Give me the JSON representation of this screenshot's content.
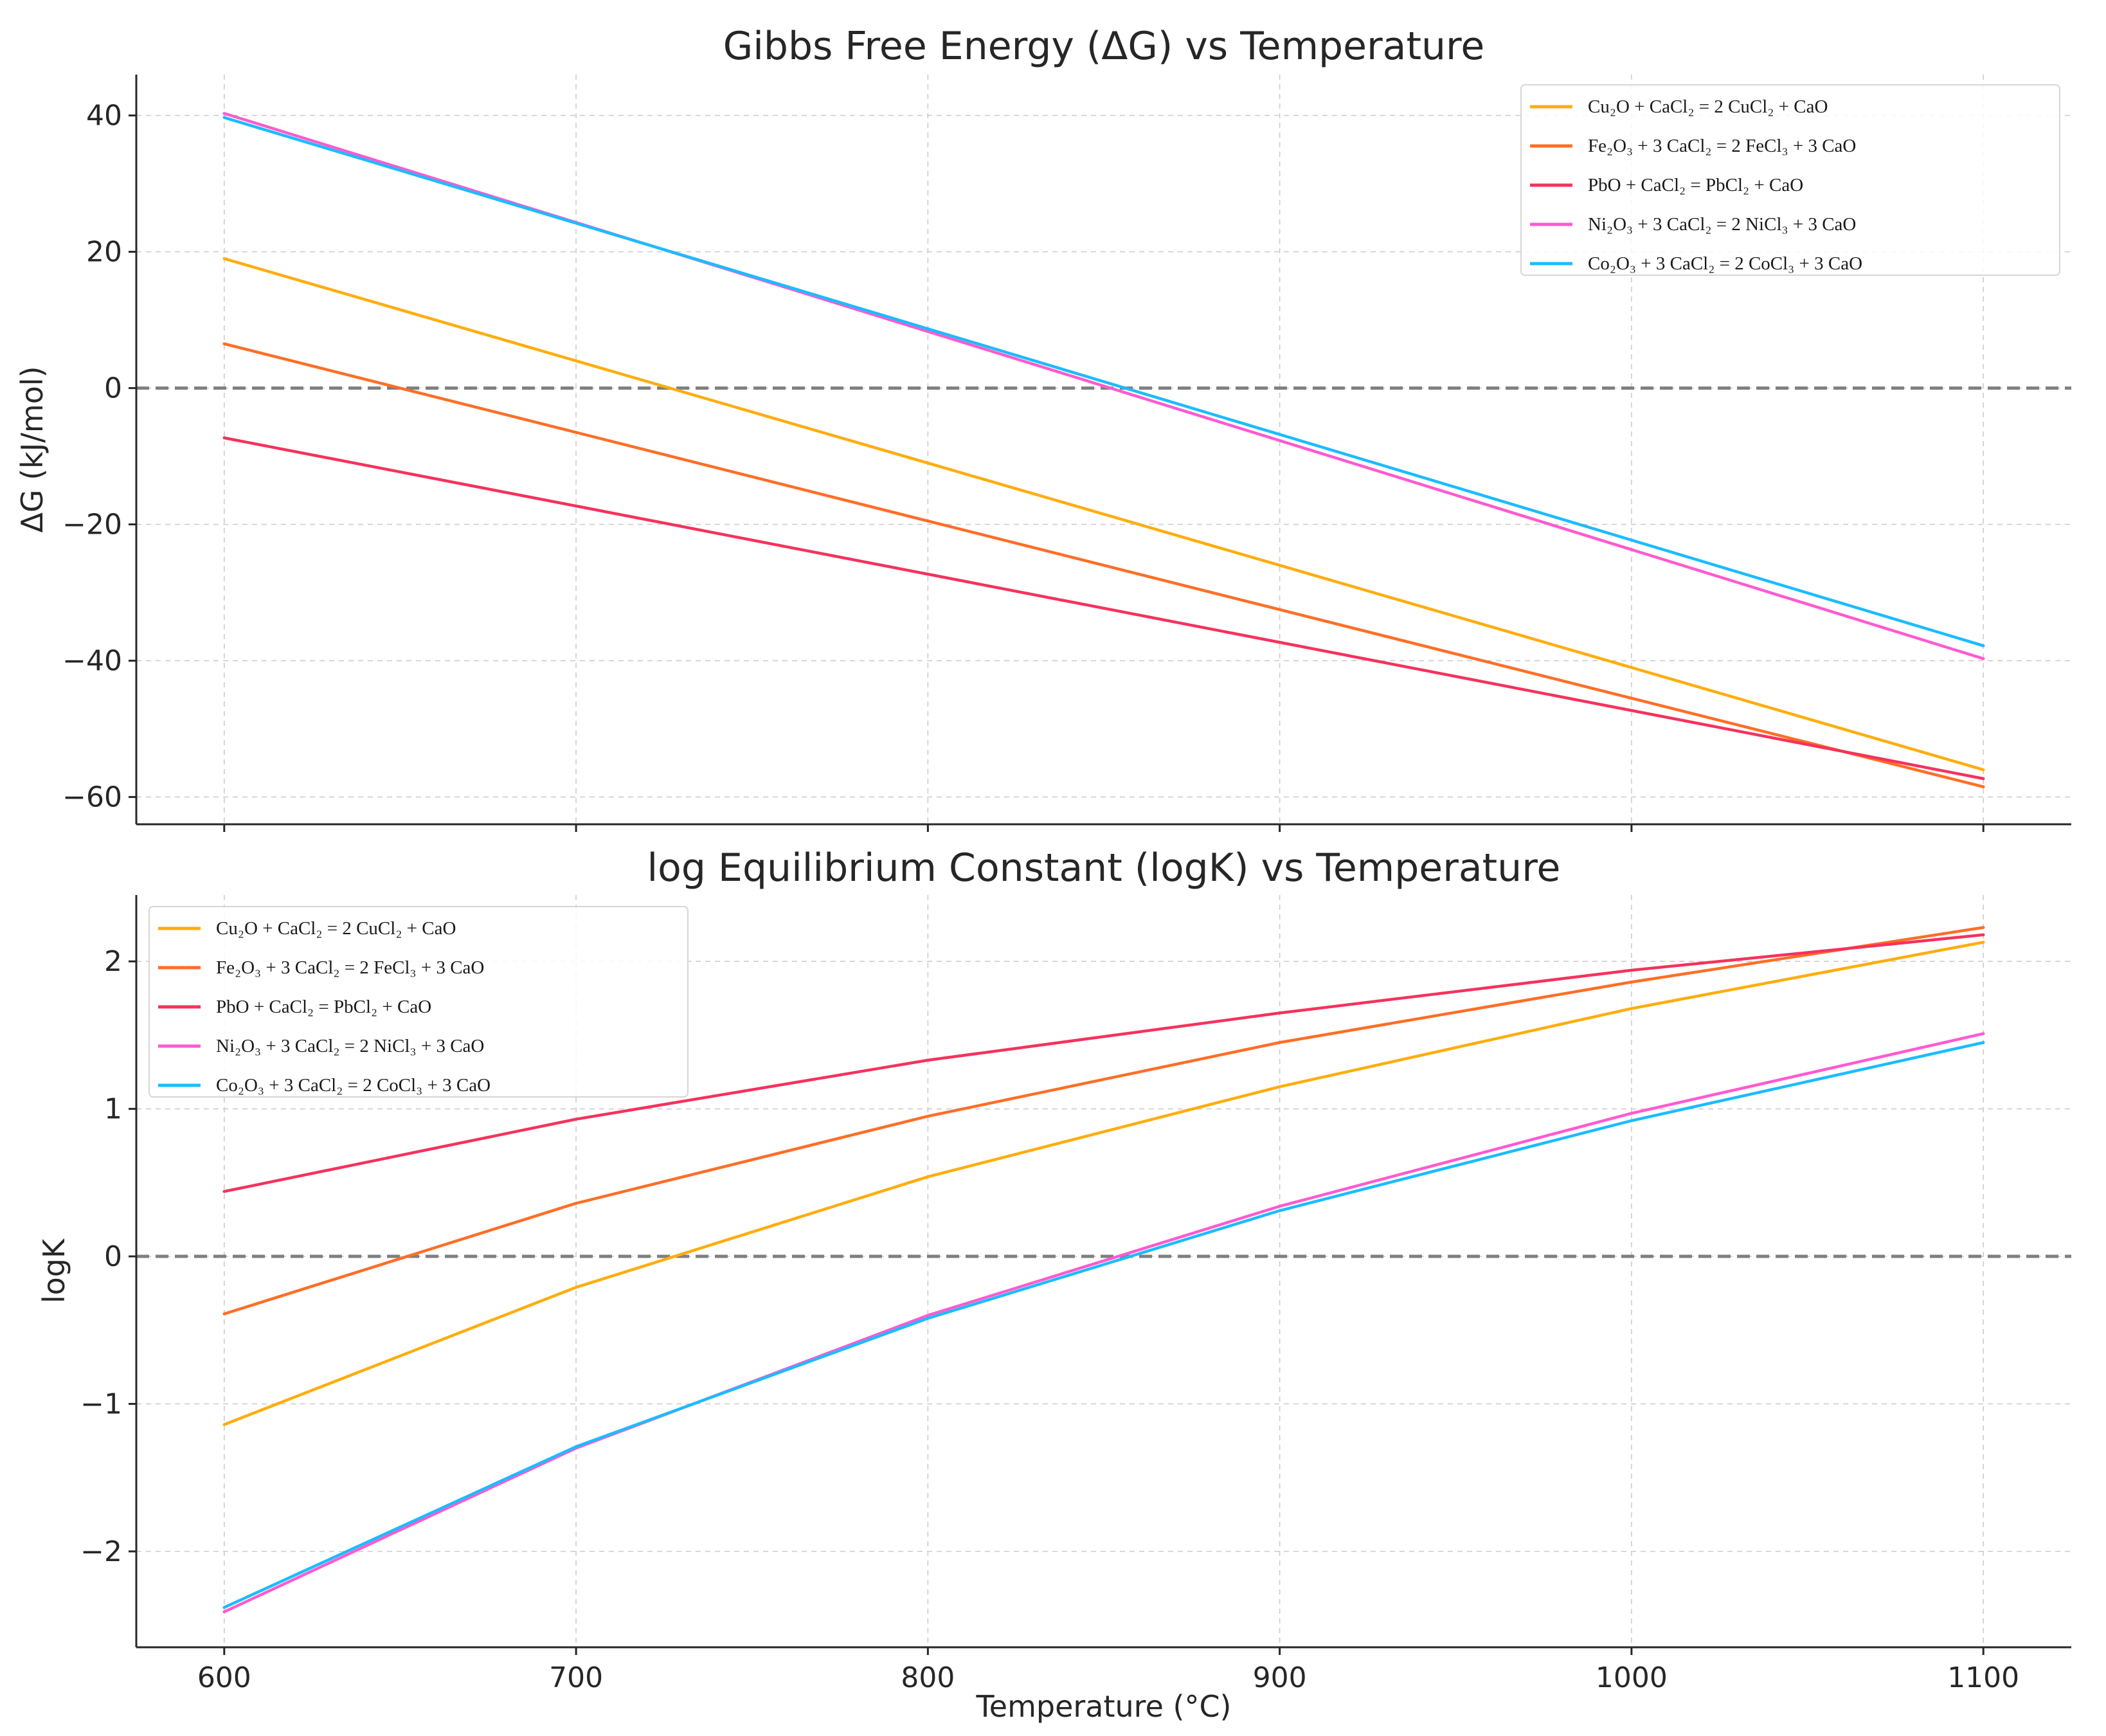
{
  "chart_data": [
    {
      "type": "line",
      "title": "Gibbs Free Energy (ΔG) vs Temperature",
      "xlabel": "",
      "ylabel": "ΔG (kJ/mol)",
      "x": [
        600,
        700,
        800,
        900,
        1000,
        1100
      ],
      "xlim": [
        575,
        1125
      ],
      "ylim": [
        -64,
        46
      ],
      "yticks": [
        40,
        20,
        0,
        -20,
        -40,
        -60
      ],
      "ytick_labels": [
        "40",
        "20",
        "0",
        "−20",
        "−40",
        "−60"
      ],
      "show_xtick_labels": false,
      "grid": true,
      "zero_line": true,
      "legend_position": "upper-right",
      "series": [
        {
          "name": "Cu₂O + CaCl₂ = 2 CuCl₂ + CaO",
          "color": "#ffad0d",
          "values": [
            19,
            4,
            -11,
            -26,
            -41,
            -56
          ]
        },
        {
          "name": "Fe₂O₃ + 3 CaCl₂ = 2 FeCl₃ + 3 CaO",
          "color": "#ff6e26",
          "values": [
            6.5,
            -6.5,
            -19.5,
            -32.5,
            -45.5,
            -58.5
          ]
        },
        {
          "name": "PbO + CaCl₂ = PbCl₂ + CaO",
          "color": "#f5325c",
          "values": [
            -7.3,
            -17.3,
            -27.3,
            -37.3,
            -47.3,
            -57.3
          ]
        },
        {
          "name": "Ni₂O₃ + 3 CaCl₂ = 2 NiCl₃ + 3 CaO",
          "color": "#ff5ad1",
          "values": [
            40.3,
            24.3,
            8.3,
            -7.7,
            -23.7,
            -39.7
          ]
        },
        {
          "name": "Co₂O₃ + 3 CaCl₂ = 2 CoCl₃ + 3 CaO",
          "color": "#1bbcff",
          "values": [
            39.7,
            24.2,
            8.7,
            -6.8,
            -22.3,
            -37.8
          ]
        }
      ]
    },
    {
      "type": "line",
      "title": "log Equilibrium Constant (logK) vs Temperature",
      "xlabel": "Temperature (°C)",
      "ylabel": "logK",
      "x": [
        600,
        700,
        800,
        900,
        1000,
        1100
      ],
      "xlim": [
        575,
        1125
      ],
      "ylim": [
        -2.65,
        2.45
      ],
      "yticks": [
        2,
        1,
        0,
        -1,
        -2
      ],
      "ytick_labels": [
        "2",
        "1",
        "0",
        "−1",
        "−2"
      ],
      "xticks": [
        600,
        700,
        800,
        900,
        1000,
        1100
      ],
      "xtick_labels": [
        "600",
        "700",
        "800",
        "900",
        "1000",
        "1100"
      ],
      "show_xtick_labels": true,
      "grid": true,
      "zero_line": true,
      "legend_position": "upper-left",
      "series": [
        {
          "name": "Cu₂O + CaCl₂ = 2 CuCl₂ + CaO",
          "color": "#ffad0d",
          "values": [
            -1.14,
            -0.21,
            0.54,
            1.15,
            1.68,
            2.13
          ]
        },
        {
          "name": "Fe₂O₃ + 3 CaCl₂ = 2 FeCl₃ + 3 CaO",
          "color": "#ff6e26",
          "values": [
            -0.39,
            0.36,
            0.95,
            1.45,
            1.86,
            2.23
          ]
        },
        {
          "name": "PbO + CaCl₂ = PbCl₂ + CaO",
          "color": "#f5325c",
          "values": [
            0.44,
            0.93,
            1.33,
            1.65,
            1.94,
            2.18
          ]
        },
        {
          "name": "Ni₂O₃ + 3 CaCl₂ = 2 NiCl₃ + 3 CaO",
          "color": "#ff5ad1",
          "values": [
            -2.41,
            -1.3,
            -0.4,
            0.34,
            0.97,
            1.51
          ]
        },
        {
          "name": "Co₂O₃ + 3 CaCl₂ = 2 CoCl₃ + 3 CaO",
          "color": "#1bbcff",
          "values": [
            -2.38,
            -1.29,
            -0.42,
            0.31,
            0.92,
            1.45
          ]
        }
      ]
    }
  ]
}
